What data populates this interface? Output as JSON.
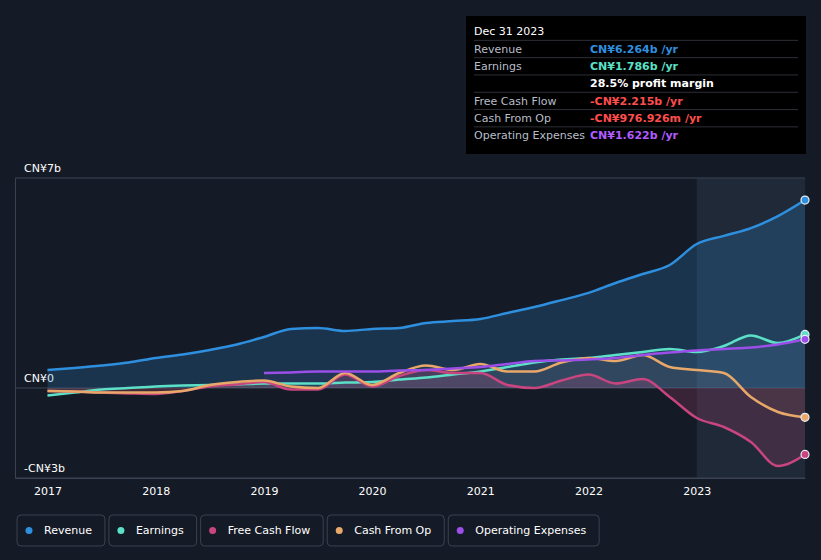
{
  "chart_data": {
    "type": "line",
    "x": [
      2017,
      2017.25,
      2017.5,
      2017.75,
      2018,
      2018.25,
      2018.5,
      2018.75,
      2019,
      2019.25,
      2019.5,
      2019.75,
      2020,
      2020.25,
      2020.5,
      2020.75,
      2021,
      2021.25,
      2021.5,
      2021.75,
      2022,
      2022.25,
      2022.5,
      2022.75,
      2023,
      2023.25,
      2023.5,
      2023.75,
      2024
    ],
    "xlim": [
      2016.7,
      2024
    ],
    "xticks": [
      2017,
      2018,
      2019,
      2020,
      2021,
      2022,
      2023
    ],
    "ylim": [
      -3,
      7
    ],
    "yticks": [
      {
        "value": -3,
        "label": "-CN¥3b"
      },
      {
        "value": 0,
        "label": "CN¥0"
      },
      {
        "value": 7,
        "label": "CN¥7b"
      }
    ],
    "grid": true,
    "legend": "bottom",
    "series": [
      {
        "name": "Revenue",
        "color": "#2f8fdf",
        "values": [
          0.6,
          0.67,
          0.75,
          0.85,
          1.0,
          1.12,
          1.27,
          1.45,
          1.7,
          1.97,
          2.0,
          1.9,
          1.97,
          2.0,
          2.17,
          2.23,
          2.3,
          2.5,
          2.7,
          2.93,
          3.17,
          3.5,
          3.8,
          4.1,
          4.8,
          5.07,
          5.33,
          5.73,
          6.264
        ]
      },
      {
        "name": "Earnings",
        "color": "#5ce0c8",
        "values": [
          -0.25,
          -0.15,
          -0.05,
          0.0,
          0.05,
          0.08,
          0.1,
          0.12,
          0.15,
          0.15,
          0.15,
          0.18,
          0.2,
          0.28,
          0.35,
          0.45,
          0.55,
          0.7,
          0.85,
          0.95,
          1.0,
          1.1,
          1.2,
          1.3,
          1.2,
          1.4,
          1.75,
          1.5,
          1.786
        ]
      },
      {
        "name": "Free Cash Flow",
        "color": "#c8457f",
        "values": [
          -0.1,
          -0.12,
          -0.15,
          -0.18,
          -0.2,
          -0.1,
          0.05,
          0.12,
          0.2,
          -0.05,
          -0.05,
          0.45,
          0.05,
          0.4,
          0.6,
          0.5,
          0.5,
          0.1,
          0.0,
          0.25,
          0.45,
          0.15,
          0.3,
          -0.3,
          -1.0,
          -1.3,
          -1.8,
          -2.6,
          -2.215
        ]
      },
      {
        "name": "Cash From Op",
        "color": "#e8a86a",
        "values": [
          -0.1,
          -0.12,
          -0.15,
          -0.15,
          -0.15,
          -0.1,
          0.1,
          0.2,
          0.25,
          0.05,
          0.0,
          0.5,
          0.1,
          0.5,
          0.75,
          0.6,
          0.8,
          0.55,
          0.55,
          0.85,
          1.0,
          0.9,
          1.1,
          0.7,
          0.6,
          0.5,
          -0.3,
          -0.8,
          -0.977
        ]
      },
      {
        "name": "Operating Expenses",
        "color": "#9b4ee8",
        "values": [
          null,
          null,
          null,
          null,
          null,
          null,
          null,
          null,
          0.5,
          0.52,
          0.55,
          0.55,
          0.55,
          0.58,
          0.6,
          0.65,
          0.7,
          0.8,
          0.9,
          0.92,
          0.95,
          1.0,
          1.1,
          1.18,
          1.25,
          1.3,
          1.35,
          1.45,
          1.622
        ]
      }
    ],
    "info_box": {
      "date": "Dec 31 2023",
      "rows": [
        {
          "label": "Revenue",
          "value": "CN¥6.264b /yr",
          "color": "#2f8fdf"
        },
        {
          "label": "Earnings",
          "value": "CN¥1.786b /yr",
          "color": "#5ce0c8"
        },
        {
          "label": null,
          "value": "28.5% profit margin",
          "color": "#ffffff"
        },
        {
          "label": "Free Cash Flow",
          "value": "-CN¥2.215b /yr",
          "color": "#ff4d4d"
        },
        {
          "label": "Cash From Op",
          "value": "-CN¥976.926m /yr",
          "color": "#ff4d4d"
        },
        {
          "label": "Operating Expenses",
          "value": "CN¥1.622b /yr",
          "color": "#b05cff"
        }
      ]
    }
  }
}
